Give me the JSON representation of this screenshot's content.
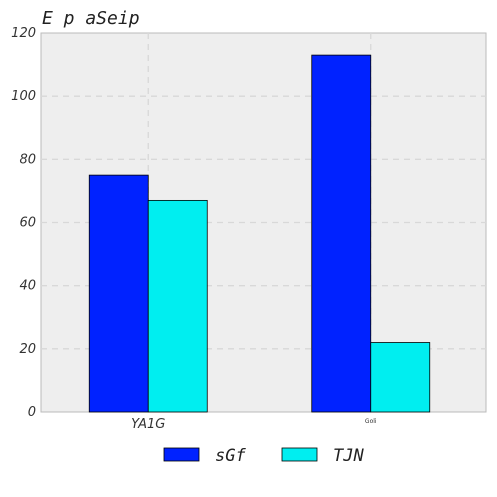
{
  "chart_data": {
    "type": "bar",
    "title": "E p aSeip",
    "categories": [
      "YA1G",
      "Goli"
    ],
    "series": [
      {
        "name": "sGf",
        "values": [
          75,
          113
        ],
        "color": "#0022ff"
      },
      {
        "name": "TJN",
        "values": [
          67,
          22
        ],
        "color": "#00eef0"
      }
    ],
    "ylim": [
      0,
      120
    ],
    "yticks": [
      0,
      20,
      40,
      60,
      80,
      100,
      120
    ],
    "grid": true,
    "legend": "bottom-center",
    "xlabel": "",
    "ylabel": ""
  }
}
